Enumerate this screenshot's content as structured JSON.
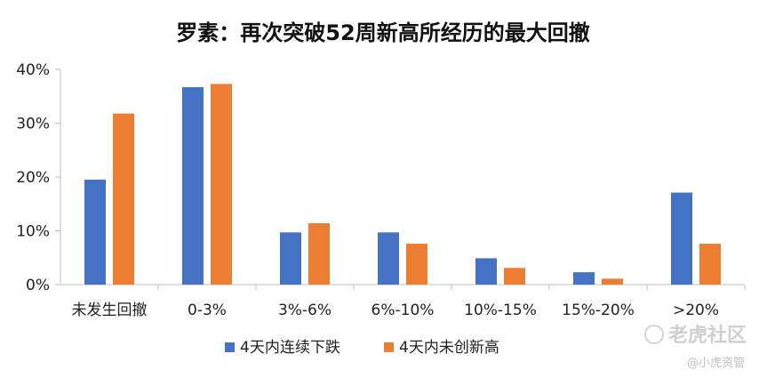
{
  "chart_data": {
    "type": "bar",
    "title": "罗素：再次突破52周新高所经历的最大回撤",
    "categories": [
      "未发生回撤",
      "0-3%",
      "3%-6%",
      "6%-10%",
      "10%-15%",
      "15%-20%",
      ">20%"
    ],
    "series": [
      {
        "name": "4天内连续下跌",
        "values": [
          19.5,
          36.7,
          9.7,
          9.7,
          4.9,
          2.3,
          17.1
        ],
        "color": "#4472C4"
      },
      {
        "name": "4天内未创新高",
        "values": [
          31.8,
          37.3,
          11.4,
          7.6,
          3.1,
          1.1,
          7.6
        ],
        "color": "#ED7D31"
      }
    ],
    "ylim": [
      0,
      40
    ],
    "yticks": [
      "0%",
      "10%",
      "20%",
      "30%",
      "40%"
    ],
    "grid": false,
    "legend_position": "bottom-center"
  },
  "watermark": {
    "brand": "老虎社区",
    "handle": "@小虎资管"
  }
}
